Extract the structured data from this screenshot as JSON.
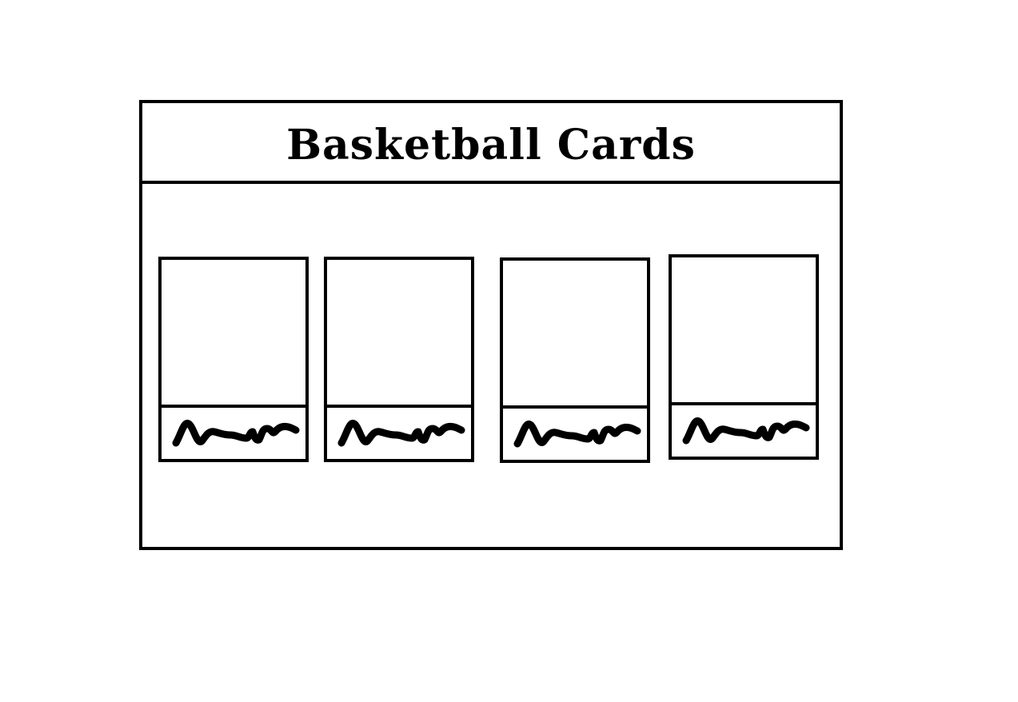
{
  "page": {
    "title": "Basketball Cards"
  },
  "cards": [
    {
      "photo_icon": "blank-photo",
      "signature_icon": "signature-scribble"
    },
    {
      "photo_icon": "blank-photo",
      "signature_icon": "signature-scribble"
    },
    {
      "photo_icon": "blank-photo",
      "signature_icon": "signature-scribble"
    },
    {
      "photo_icon": "blank-photo",
      "signature_icon": "signature-scribble"
    }
  ],
  "colors": {
    "ink": "#000000",
    "background": "#ffffff"
  }
}
